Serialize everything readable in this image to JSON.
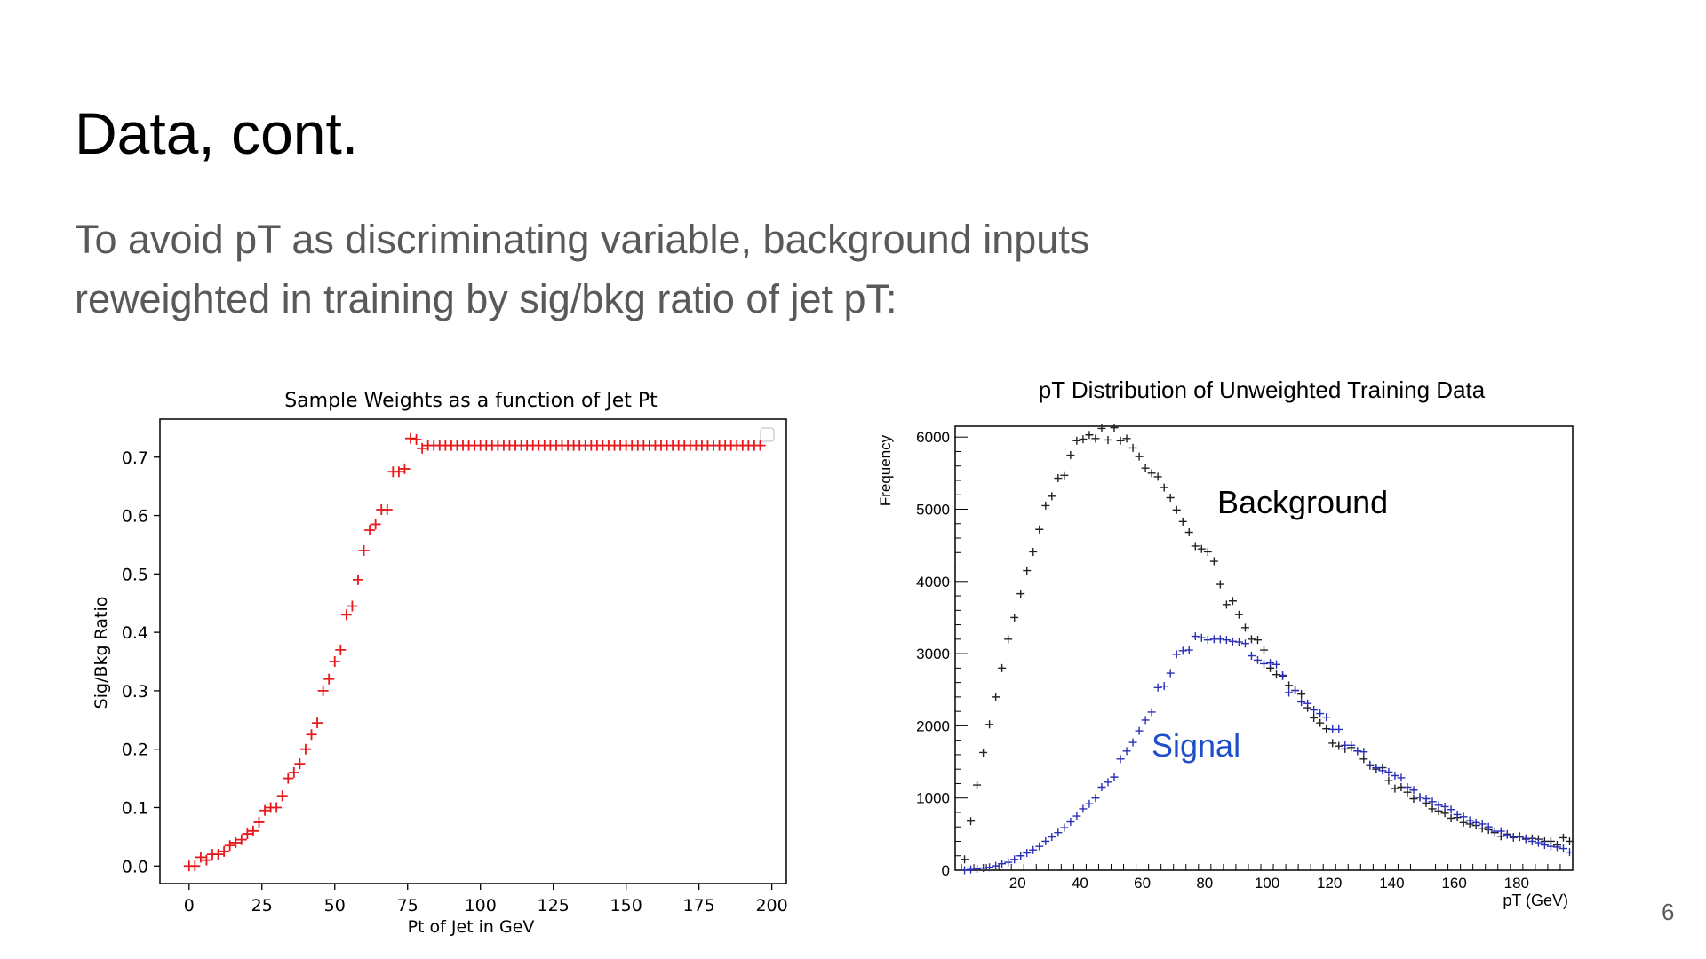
{
  "slide": {
    "title": "Data, cont.",
    "body_line1": "To avoid pT as discriminating variable, background inputs",
    "body_line2": "reweighted in training by sig/bkg ratio of jet pT:",
    "page_number": "6"
  },
  "chart_data": [
    {
      "type": "scatter",
      "title": "Sample Weights as a function of Jet Pt",
      "xlabel": "Pt of Jet in GeV",
      "ylabel": "Sig/Bkg Ratio",
      "xlim": [
        -10,
        205
      ],
      "ylim": [
        -0.03,
        0.765
      ],
      "xticks": [
        0,
        25,
        50,
        75,
        100,
        125,
        150,
        175,
        200
      ],
      "xtick_labels": [
        "0",
        "25",
        "50",
        "75",
        "100",
        "125",
        "150",
        "175",
        "200"
      ],
      "yticks": [
        0.0,
        0.1,
        0.2,
        0.3,
        0.4,
        0.5,
        0.6,
        0.7
      ],
      "ytick_labels": [
        "0.0",
        "0.1",
        "0.2",
        "0.3",
        "0.4",
        "0.5",
        "0.6",
        "0.7"
      ],
      "marker_color": "#e8191c",
      "legend": "top-right (empty)",
      "series": [
        {
          "x": [
            0,
            2,
            4,
            6,
            8,
            10,
            12,
            14,
            16,
            18,
            20,
            22,
            24,
            26,
            28,
            30,
            32,
            34,
            36,
            38,
            40,
            42,
            44,
            46,
            48,
            50,
            52,
            54,
            56,
            58,
            60,
            62,
            64,
            66,
            68,
            70,
            72,
            74,
            76,
            78,
            80,
            82,
            84,
            86,
            88,
            90,
            92,
            94,
            96,
            98,
            100,
            102,
            104,
            106,
            108,
            110,
            112,
            114,
            116,
            118,
            120,
            122,
            124,
            126,
            128,
            130,
            132,
            134,
            136,
            138,
            140,
            142,
            144,
            146,
            148,
            150,
            152,
            154,
            156,
            158,
            160,
            162,
            164,
            166,
            168,
            170,
            172,
            174,
            176,
            178,
            180,
            182,
            184,
            186,
            188,
            190,
            192,
            194,
            196
          ],
          "y": [
            0.0,
            0.0,
            0.015,
            0.01,
            0.02,
            0.02,
            0.025,
            0.035,
            0.04,
            0.045,
            0.055,
            0.06,
            0.075,
            0.095,
            0.1,
            0.1,
            0.12,
            0.15,
            0.16,
            0.175,
            0.2,
            0.225,
            0.245,
            0.3,
            0.32,
            0.35,
            0.37,
            0.43,
            0.445,
            0.49,
            0.54,
            0.575,
            0.585,
            0.61,
            0.61,
            0.675,
            0.675,
            0.68,
            0.732,
            0.73,
            0.715,
            0.72,
            0.72,
            0.72,
            0.72,
            0.72,
            0.72,
            0.72,
            0.72,
            0.72,
            0.72,
            0.72,
            0.72,
            0.72,
            0.72,
            0.72,
            0.72,
            0.72,
            0.72,
            0.72,
            0.72,
            0.72,
            0.72,
            0.72,
            0.72,
            0.72,
            0.72,
            0.72,
            0.72,
            0.72,
            0.72,
            0.72,
            0.72,
            0.72,
            0.72,
            0.72,
            0.72,
            0.72,
            0.72,
            0.72,
            0.72,
            0.72,
            0.72,
            0.72,
            0.72,
            0.72,
            0.72,
            0.72,
            0.72,
            0.72,
            0.72,
            0.72,
            0.72,
            0.72,
            0.72,
            0.72,
            0.72,
            0.72,
            0.72
          ]
        }
      ]
    },
    {
      "type": "scatter",
      "title": "pT Distribution of Unweighted Training Data",
      "xlabel": "pT (GeV)",
      "ylabel": "Frequency",
      "xlim": [
        0,
        198
      ],
      "ylim": [
        0,
        6150
      ],
      "xticks": [
        20,
        40,
        60,
        80,
        100,
        120,
        140,
        160,
        180
      ],
      "xtick_labels": [
        "20",
        "40",
        "60",
        "80",
        "100",
        "120",
        "140",
        "160",
        "180"
      ],
      "yticks": [
        0,
        1000,
        2000,
        3000,
        4000,
        5000,
        6000
      ],
      "ytick_labels": [
        "0",
        "1000",
        "2000",
        "3000",
        "4000",
        "5000",
        "6000"
      ],
      "annotations": [
        {
          "text": "Background",
          "color": "#000000"
        },
        {
          "text": "Signal",
          "color": "#1f4fc8"
        }
      ],
      "series": [
        {
          "name": "Background",
          "color": "#222222",
          "x": [
            3,
            5,
            7,
            9,
            11,
            13,
            15,
            17,
            19,
            21,
            23,
            25,
            27,
            29,
            31,
            33,
            35,
            37,
            39,
            41,
            43,
            45,
            47,
            49,
            51,
            53,
            55,
            57,
            59,
            61,
            63,
            65,
            67,
            69,
            71,
            73,
            75,
            77,
            79,
            81,
            83,
            85,
            87,
            89,
            91,
            93,
            95,
            97,
            99,
            101,
            103,
            105,
            107,
            109,
            111,
            113,
            115,
            117,
            119,
            121,
            123,
            125,
            127,
            129,
            131,
            133,
            135,
            137,
            139,
            141,
            143,
            145,
            147,
            149,
            151,
            153,
            155,
            157,
            159,
            161,
            163,
            165,
            167,
            169,
            171,
            173,
            175,
            177,
            179,
            181,
            183,
            185,
            187,
            189,
            191,
            193,
            195,
            197
          ],
          "y": [
            150,
            680,
            1180,
            1630,
            2020,
            2400,
            2800,
            3200,
            3500,
            3830,
            4150,
            4410,
            4720,
            5050,
            5180,
            5430,
            5470,
            5750,
            5950,
            5970,
            6030,
            5980,
            6120,
            5960,
            6130,
            5950,
            5980,
            5850,
            5730,
            5570,
            5500,
            5450,
            5300,
            5160,
            4990,
            4830,
            4680,
            4490,
            4450,
            4410,
            4280,
            3960,
            3680,
            3730,
            3540,
            3360,
            3200,
            3190,
            3050,
            2800,
            2710,
            2690,
            2560,
            2490,
            2440,
            2250,
            2110,
            2040,
            1960,
            1760,
            1720,
            1680,
            1700,
            1650,
            1540,
            1450,
            1400,
            1420,
            1240,
            1130,
            1150,
            1080,
            990,
            1010,
            930,
            850,
            820,
            790,
            720,
            730,
            660,
            640,
            620,
            580,
            560,
            520,
            470,
            500,
            460,
            460,
            430,
            440,
            430,
            400,
            400,
            350,
            450,
            400
          ]
        },
        {
          "name": "Signal",
          "color": "#2a2fb8",
          "x": [
            3,
            5,
            7,
            9,
            11,
            13,
            15,
            17,
            19,
            21,
            23,
            25,
            27,
            29,
            31,
            33,
            35,
            37,
            39,
            41,
            43,
            45,
            47,
            49,
            51,
            53,
            55,
            57,
            59,
            61,
            63,
            65,
            67,
            69,
            71,
            73,
            75,
            77,
            79,
            81,
            83,
            85,
            87,
            89,
            91,
            93,
            95,
            97,
            99,
            101,
            103,
            105,
            107,
            109,
            111,
            113,
            115,
            117,
            119,
            121,
            123,
            125,
            127,
            129,
            131,
            133,
            135,
            137,
            139,
            141,
            143,
            145,
            147,
            149,
            151,
            153,
            155,
            157,
            159,
            161,
            163,
            165,
            167,
            169,
            171,
            173,
            175,
            177,
            179,
            181,
            183,
            185,
            187,
            189,
            191,
            193,
            195,
            197
          ],
          "y": [
            0,
            10,
            20,
            30,
            40,
            60,
            90,
            110,
            150,
            200,
            240,
            280,
            330,
            400,
            460,
            520,
            590,
            670,
            750,
            850,
            920,
            1000,
            1150,
            1220,
            1290,
            1540,
            1650,
            1770,
            1930,
            2080,
            2190,
            2530,
            2550,
            2730,
            2990,
            3040,
            3050,
            3240,
            3220,
            3190,
            3200,
            3200,
            3190,
            3170,
            3160,
            3140,
            2970,
            2910,
            2860,
            2870,
            2850,
            2700,
            2460,
            2490,
            2330,
            2310,
            2220,
            2170,
            2120,
            1950,
            1950,
            1730,
            1730,
            1650,
            1640,
            1460,
            1420,
            1380,
            1360,
            1310,
            1280,
            1150,
            1110,
            1010,
            990,
            950,
            900,
            880,
            840,
            770,
            740,
            690,
            660,
            640,
            600,
            540,
            540,
            490,
            450,
            470,
            440,
            400,
            380,
            350,
            330,
            320,
            300,
            250
          ]
        }
      ]
    }
  ]
}
